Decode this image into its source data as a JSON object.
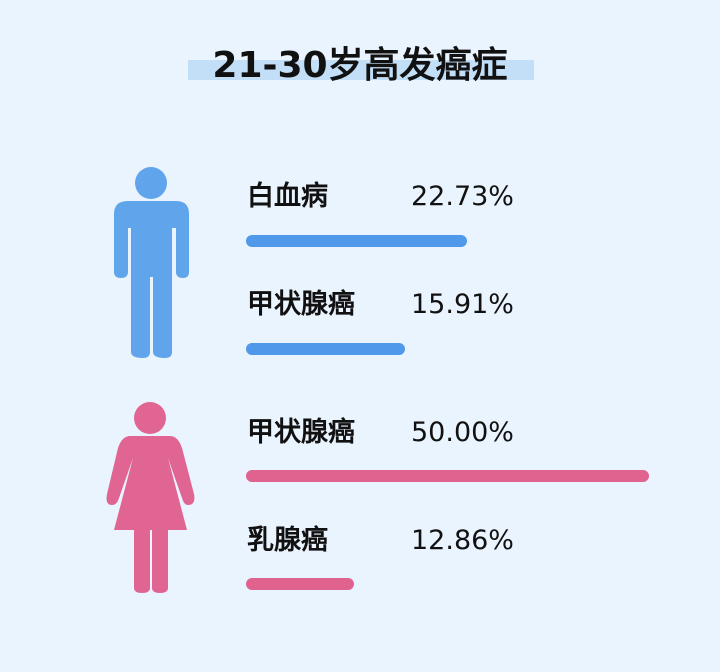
{
  "title": "21-30岁高发癌症",
  "colors": {
    "male": "#4f98ea",
    "female": "#e0628f",
    "male_icon": "#60a5ec",
    "female_icon": "#e06592",
    "title_highlight": "#c3dff8"
  },
  "chart_data": {
    "type": "bar",
    "orientation": "horizontal",
    "title": "21-30岁高发癌症",
    "groups": [
      {
        "icon": "male-figure-icon",
        "items": [
          {
            "label": "白血病",
            "value": 22.73,
            "value_label": "22.73%"
          },
          {
            "label": "甲状腺癌",
            "value": 15.91,
            "value_label": "15.91%"
          }
        ]
      },
      {
        "icon": "female-figure-icon",
        "items": [
          {
            "label": "甲状腺癌",
            "value": 50.0,
            "value_label": "50.00%"
          },
          {
            "label": "乳腺癌",
            "value": 12.86,
            "value_label": "12.86%"
          }
        ]
      }
    ]
  }
}
